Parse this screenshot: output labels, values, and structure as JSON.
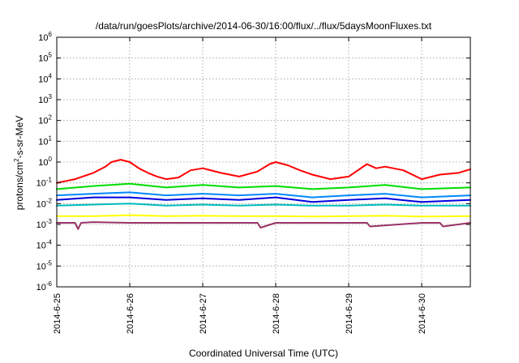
{
  "chart_data": {
    "type": "line",
    "title": "/data/run/goesPlots/archive/2014-06-30/16:00/flux/../flux/5daysMoonFluxes.txt",
    "xlabel": "Coordinated Universal Time (UTC)",
    "ylabel": {
      "before": "protons/cm",
      "sup": "2",
      "after": "-s-sr-MeV"
    },
    "y_scale": "log",
    "ylim": [
      1e-06,
      1000000.0
    ],
    "y_ticks": [
      {
        "value": 1e-06,
        "base": "10",
        "exp": "-6"
      },
      {
        "value": 1e-05,
        "base": "10",
        "exp": "-5"
      },
      {
        "value": 0.0001,
        "base": "10",
        "exp": "-4"
      },
      {
        "value": 0.001,
        "base": "10",
        "exp": "-3"
      },
      {
        "value": 0.01,
        "base": "10",
        "exp": "-2"
      },
      {
        "value": 0.1,
        "base": "10",
        "exp": "-1"
      },
      {
        "value": 1.0,
        "base": "10",
        "exp": "0"
      },
      {
        "value": 10.0,
        "base": "10",
        "exp": "1"
      },
      {
        "value": 100.0,
        "base": "10",
        "exp": "2"
      },
      {
        "value": 1000.0,
        "base": "10",
        "exp": "3"
      },
      {
        "value": 10000.0,
        "base": "10",
        "exp": "4"
      },
      {
        "value": 100000.0,
        "base": "10",
        "exp": "5"
      },
      {
        "value": 1000000.0,
        "base": "10",
        "exp": "6"
      }
    ],
    "xlim": [
      "2014-06-25",
      "2014-06-30T16:00"
    ],
    "x_ticks": [
      {
        "value": "2014-06-25",
        "label": "2014-6-25"
      },
      {
        "value": "2014-06-26",
        "label": "2014-6-26"
      },
      {
        "value": "2014-06-27",
        "label": "2014-6-27"
      },
      {
        "value": "2014-06-28",
        "label": "2014-6-28"
      },
      {
        "value": "2014-06-29",
        "label": "2014-6-29"
      },
      {
        "value": "2014-06-30",
        "label": "2014-6-30"
      }
    ],
    "grid": true,
    "series": [
      {
        "color": "#ff0000",
        "x": [
          "2014-06-25T00:00",
          "2014-06-25T06:00",
          "2014-06-25T12:00",
          "2014-06-25T16:00",
          "2014-06-25T18:00",
          "2014-06-25T21:00",
          "2014-06-26T00:00",
          "2014-06-26T03:00",
          "2014-06-26T06:00",
          "2014-06-26T09:00",
          "2014-06-26T12:00",
          "2014-06-26T16:00",
          "2014-06-26T20:00",
          "2014-06-27T00:00",
          "2014-06-27T06:00",
          "2014-06-27T12:00",
          "2014-06-27T18:00",
          "2014-06-27T22:00",
          "2014-06-28T00:00",
          "2014-06-28T04:00",
          "2014-06-28T08:00",
          "2014-06-28T12:00",
          "2014-06-28T18:00",
          "2014-06-29T00:00",
          "2014-06-29T06:00",
          "2014-06-29T09:00",
          "2014-06-29T12:00",
          "2014-06-29T18:00",
          "2014-06-30T00:00",
          "2014-06-30T06:00",
          "2014-06-30T12:00",
          "2014-06-30T16:00"
        ],
        "y": [
          0.1,
          0.15,
          0.3,
          0.6,
          1.0,
          1.3,
          1.0,
          0.5,
          0.3,
          0.2,
          0.15,
          0.18,
          0.4,
          0.5,
          0.3,
          0.2,
          0.35,
          0.8,
          1.0,
          0.7,
          0.4,
          0.25,
          0.15,
          0.2,
          0.8,
          0.5,
          0.6,
          0.4,
          0.15,
          0.25,
          0.3,
          0.45
        ]
      },
      {
        "color": "#00dd00",
        "x": [
          "2014-06-25T00:00",
          "2014-06-25T12:00",
          "2014-06-26T00:00",
          "2014-06-26T12:00",
          "2014-06-27T00:00",
          "2014-06-27T12:00",
          "2014-06-28T00:00",
          "2014-06-28T12:00",
          "2014-06-29T00:00",
          "2014-06-29T12:00",
          "2014-06-30T00:00",
          "2014-06-30T16:00"
        ],
        "y": [
          0.05,
          0.07,
          0.09,
          0.06,
          0.08,
          0.06,
          0.07,
          0.05,
          0.06,
          0.08,
          0.05,
          0.06
        ]
      },
      {
        "color": "#0088ff",
        "x": [
          "2014-06-25T00:00",
          "2014-06-25T12:00",
          "2014-06-26T00:00",
          "2014-06-26T12:00",
          "2014-06-27T00:00",
          "2014-06-27T12:00",
          "2014-06-28T00:00",
          "2014-06-28T12:00",
          "2014-06-29T00:00",
          "2014-06-29T12:00",
          "2014-06-30T00:00",
          "2014-06-30T16:00"
        ],
        "y": [
          0.025,
          0.03,
          0.035,
          0.025,
          0.03,
          0.025,
          0.03,
          0.02,
          0.025,
          0.03,
          0.02,
          0.025
        ]
      },
      {
        "color": "#0000dd",
        "x": [
          "2014-06-25T00:00",
          "2014-06-25T12:00",
          "2014-06-26T00:00",
          "2014-06-26T12:00",
          "2014-06-27T00:00",
          "2014-06-27T12:00",
          "2014-06-28T00:00",
          "2014-06-28T12:00",
          "2014-06-29T00:00",
          "2014-06-29T12:00",
          "2014-06-30T00:00",
          "2014-06-30T16:00"
        ],
        "y": [
          0.015,
          0.02,
          0.02,
          0.015,
          0.018,
          0.015,
          0.02,
          0.012,
          0.015,
          0.018,
          0.012,
          0.015
        ]
      },
      {
        "color": "#00bbbb",
        "x": [
          "2014-06-25T00:00",
          "2014-06-25T12:00",
          "2014-06-26T00:00",
          "2014-06-26T12:00",
          "2014-06-27T00:00",
          "2014-06-27T12:00",
          "2014-06-28T00:00",
          "2014-06-28T12:00",
          "2014-06-29T00:00",
          "2014-06-29T12:00",
          "2014-06-30T00:00",
          "2014-06-30T16:00"
        ],
        "y": [
          0.008,
          0.009,
          0.01,
          0.008,
          0.009,
          0.008,
          0.009,
          0.008,
          0.008,
          0.009,
          0.008,
          0.008
        ]
      },
      {
        "color": "#ffff00",
        "x": [
          "2014-06-25T00:00",
          "2014-06-25T12:00",
          "2014-06-26T00:00",
          "2014-06-26T12:00",
          "2014-06-27T00:00",
          "2014-06-27T12:00",
          "2014-06-28T00:00",
          "2014-06-28T12:00",
          "2014-06-29T00:00",
          "2014-06-29T12:00",
          "2014-06-30T00:00",
          "2014-06-30T16:00"
        ],
        "y": [
          0.0025,
          0.0025,
          0.0028,
          0.0025,
          0.0026,
          0.0025,
          0.0025,
          0.0024,
          0.0025,
          0.0026,
          0.0024,
          0.0025
        ]
      },
      {
        "color": "#993366",
        "x": [
          "2014-06-25T00:00",
          "2014-06-25T06:00",
          "2014-06-25T07:00",
          "2014-06-25T08:00",
          "2014-06-25T12:00",
          "2014-06-26T00:00",
          "2014-06-26T12:00",
          "2014-06-27T00:00",
          "2014-06-27T12:00",
          "2014-06-27T18:00",
          "2014-06-27T19:00",
          "2014-06-28T00:00",
          "2014-06-28T12:00",
          "2014-06-29T00:00",
          "2014-06-29T06:00",
          "2014-06-29T07:00",
          "2014-06-30T00:00",
          "2014-06-30T06:00",
          "2014-06-30T07:00",
          "2014-06-30T16:00"
        ],
        "y": [
          0.0012,
          0.0012,
          0.0006,
          0.0012,
          0.0013,
          0.0012,
          0.0012,
          0.0012,
          0.0012,
          0.0012,
          0.0007,
          0.0012,
          0.0012,
          0.0012,
          0.0012,
          0.0008,
          0.0012,
          0.0012,
          0.0008,
          0.0012
        ]
      }
    ]
  }
}
